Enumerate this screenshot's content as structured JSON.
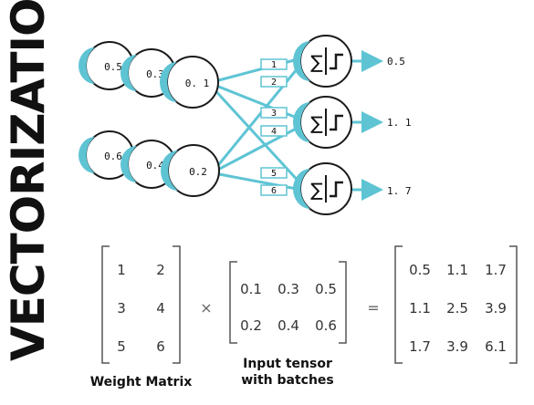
{
  "title": "VECTORIZATION",
  "colors": {
    "accent": "#5ec4d4",
    "stroke": "#1a1a1a",
    "text": "#111111"
  },
  "inputs": [
    {
      "weights": [
        "0.5",
        "0.3",
        "0. 1"
      ]
    },
    {
      "weights": [
        "0.6",
        "0.4",
        "0.2"
      ]
    }
  ],
  "edge_labels": [
    "1",
    "2",
    "3",
    "4",
    "5",
    "6"
  ],
  "neurons": [
    {
      "icon": "sum-step-activation-icon",
      "output": "0.5"
    },
    {
      "icon": "sum-step-activation-icon",
      "output": "1. 1"
    },
    {
      "icon": "sum-step-activation-icon",
      "output": "1. 7"
    }
  ],
  "equation": {
    "weight_matrix": [
      [
        "1",
        "2"
      ],
      [
        "3",
        "4"
      ],
      [
        "5",
        "6"
      ]
    ],
    "times": "×",
    "input_tensor": [
      [
        "0.1",
        "0.3",
        "0.5"
      ],
      [
        "0.2",
        "0.4",
        "0.6"
      ]
    ],
    "equals": "=",
    "result": [
      [
        "0.5",
        "1.1",
        "1.7"
      ],
      [
        "1.1",
        "2.5",
        "3.9"
      ],
      [
        "1.7",
        "3.9",
        "6.1"
      ]
    ]
  },
  "captions": {
    "weight_matrix": "Weight Matrix",
    "input_tensor_line1": "Input tensor",
    "input_tensor_line2": "with batches"
  }
}
